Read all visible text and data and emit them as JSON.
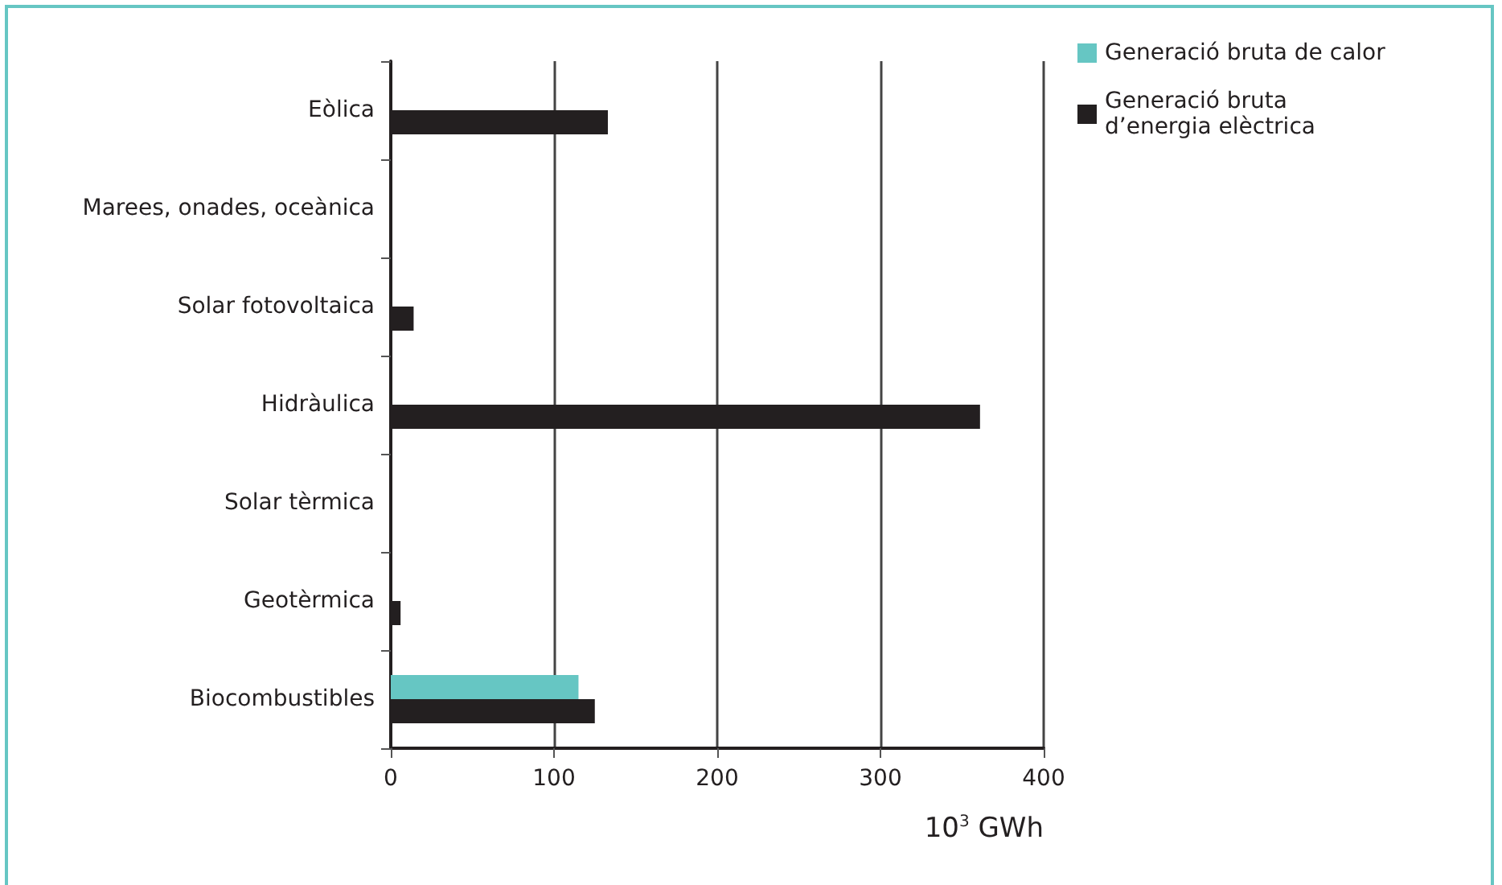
{
  "chart_data": {
    "type": "bar",
    "orientation": "horizontal",
    "categories": [
      "Eòlica",
      "Marees, onades, oceànica",
      "Solar fotovoltaica",
      "Hidràulica",
      "Solar tèrmica",
      "Geotèrmica",
      "Biocombustibles"
    ],
    "series": [
      {
        "name": "Generació bruta de calor",
        "color": "#66c6c3",
        "values": [
          null,
          null,
          null,
          null,
          null,
          null,
          115
        ]
      },
      {
        "name": "Generació bruta d’energia elèctrica",
        "color": "#231f20",
        "values": [
          133,
          null,
          14,
          361,
          null,
          6,
          125
        ]
      }
    ],
    "xlabel": "10$^{3}$ GWh",
    "xlim": [
      0,
      400
    ],
    "xticks": [
      0,
      100,
      200,
      300,
      400
    ],
    "grid": "x",
    "legend": "top right"
  }
}
